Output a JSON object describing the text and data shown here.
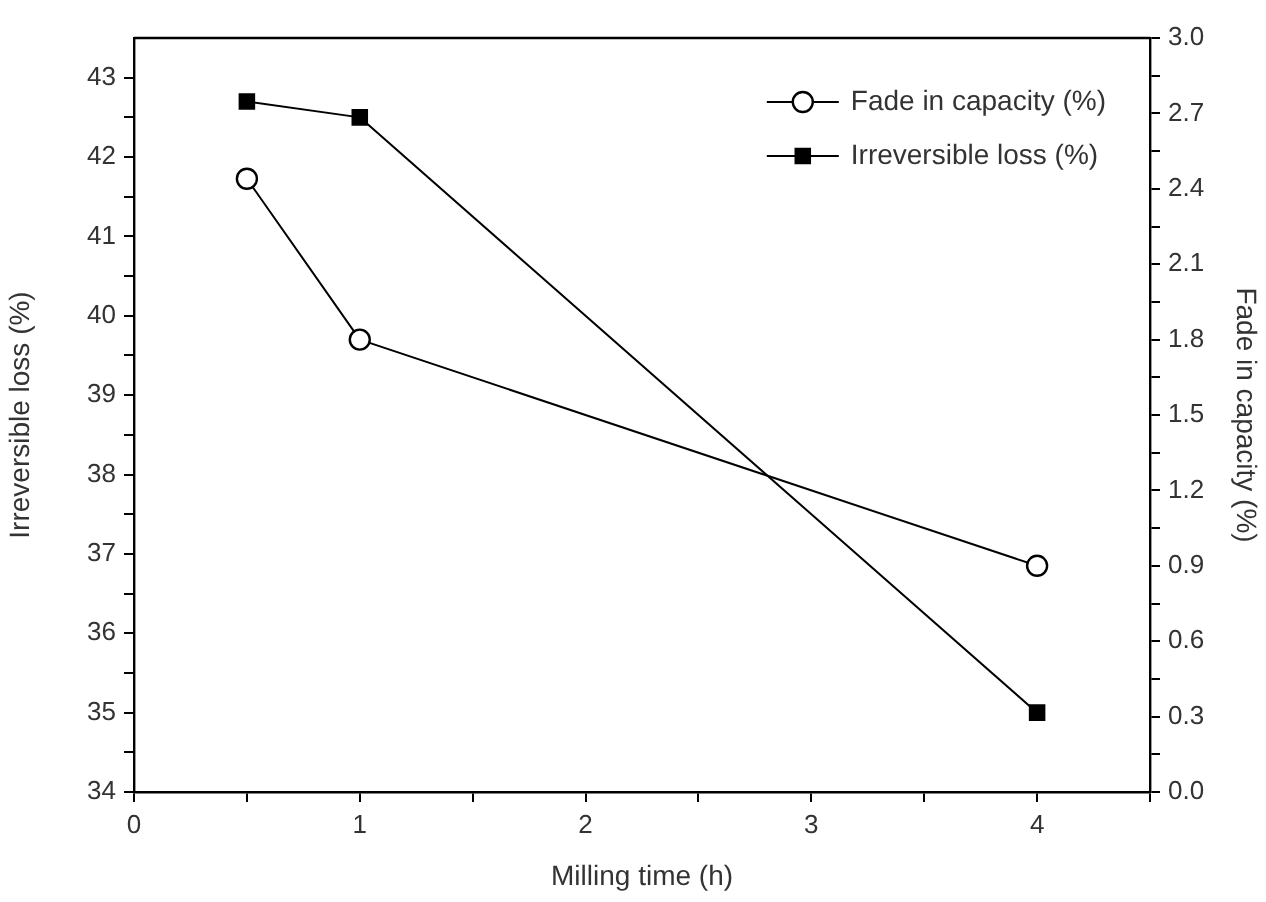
{
  "chart_data": {
    "type": "line",
    "xlabel": "Milling time (h)",
    "ylabel": "Irreversible loss (%)",
    "y2label": "Fade in capacity (%)",
    "xlim": [
      0,
      4.5
    ],
    "xticks": [
      0,
      {
        "value": 0.5,
        "label": null
      },
      1,
      {
        "value": 1.5,
        "label": null
      },
      2,
      {
        "value": 2.5,
        "label": null
      },
      3,
      {
        "value": 3.5,
        "label": null
      },
      4,
      {
        "value": 4.5,
        "label": null
      }
    ],
    "ylim": [
      34,
      43.5
    ],
    "yticks": [
      34,
      {
        "value": 34.5,
        "label": null
      },
      35,
      {
        "value": 35.5,
        "label": null
      },
      36,
      {
        "value": 36.5,
        "label": null
      },
      37,
      {
        "value": 37.5,
        "label": null
      },
      38,
      {
        "value": 38.5,
        "label": null
      },
      39,
      {
        "value": 39.5,
        "label": null
      },
      40,
      {
        "value": 40.5,
        "label": null
      },
      41,
      {
        "value": 41.5,
        "label": null
      },
      42,
      {
        "value": 42.5,
        "label": null
      },
      43
    ],
    "y2lim": [
      0,
      3
    ],
    "y2ticks": [
      {
        "value": 0,
        "label": "0.0"
      },
      {
        "value": 0.15,
        "label": null
      },
      0.3,
      {
        "value": 0.45,
        "label": null
      },
      0.6,
      {
        "value": 0.75,
        "label": null
      },
      0.9,
      {
        "value": 1.05,
        "label": null
      },
      1.2,
      {
        "value": 1.35,
        "label": null
      },
      1.5,
      {
        "value": 1.65,
        "label": null
      },
      1.8,
      {
        "value": 1.95,
        "label": null
      },
      2.1,
      {
        "value": 2.25,
        "label": null
      },
      2.4,
      {
        "value": 2.55,
        "label": null
      },
      2.7,
      {
        "value": 2.85,
        "label": null
      },
      {
        "value": 3,
        "label": "3.0"
      }
    ],
    "x": [
      0.5,
      1,
      4
    ],
    "series": [
      {
        "name": "Fade in capacity (%)",
        "color": "#000000",
        "values": [
          2.44,
          1.8,
          0.9
        ],
        "axis": "y2",
        "marker": "circle"
      },
      {
        "name": "Irreversible loss (%)",
        "color": "#000000",
        "values": [
          42.7,
          42.5,
          35.0
        ],
        "marker": "square"
      }
    ],
    "legend": "top right",
    "grid": false,
    "line_style": "solid"
  }
}
